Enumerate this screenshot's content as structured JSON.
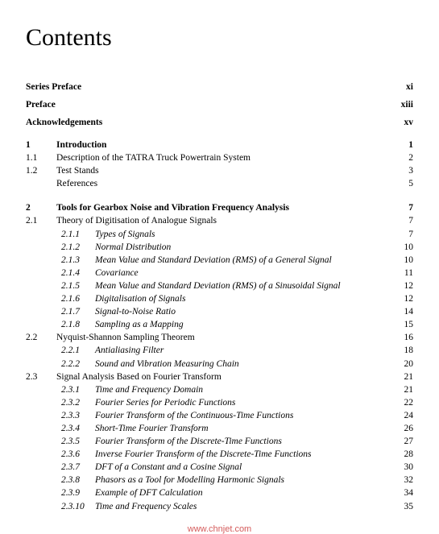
{
  "title": "Contents",
  "front": [
    {
      "label": "Series Preface",
      "page": "xi"
    },
    {
      "label": "Preface",
      "page": "xiii"
    },
    {
      "label": "Acknowledgements",
      "page": "xv"
    }
  ],
  "chapters": [
    {
      "num": "1",
      "title": "Introduction",
      "page": "1",
      "sections": [
        {
          "num": "1.1",
          "title": "Description of the TATRA Truck Powertrain System",
          "page": "2",
          "subs": []
        },
        {
          "num": "1.2",
          "title": "Test Stands",
          "page": "3",
          "subs": []
        },
        {
          "num": "",
          "title": "References",
          "page": "5",
          "subs": []
        }
      ]
    },
    {
      "num": "2",
      "title": "Tools for Gearbox Noise and Vibration Frequency Analysis",
      "page": "7",
      "sections": [
        {
          "num": "2.1",
          "title": "Theory of Digitisation of Analogue Signals",
          "page": "7",
          "subs": [
            {
              "num": "2.1.1",
              "title": "Types of Signals",
              "page": "7"
            },
            {
              "num": "2.1.2",
              "title": "Normal Distribution",
              "page": "10"
            },
            {
              "num": "2.1.3",
              "title": "Mean Value and Standard Deviation (RMS) of a General Signal",
              "page": "10"
            },
            {
              "num": "2.1.4",
              "title": "Covariance",
              "page": "11"
            },
            {
              "num": "2.1.5",
              "title": "Mean Value and Standard Deviation (RMS) of a Sinusoidal Signal",
              "page": "12"
            },
            {
              "num": "2.1.6",
              "title": "Digitalisation of Signals",
              "page": "12"
            },
            {
              "num": "2.1.7",
              "title": "Signal-to-Noise Ratio",
              "page": "14"
            },
            {
              "num": "2.1.8",
              "title": "Sampling as a Mapping",
              "page": "15"
            }
          ]
        },
        {
          "num": "2.2",
          "title": "Nyquist-Shannon Sampling Theorem",
          "page": "16",
          "subs": [
            {
              "num": "2.2.1",
              "title": "Antialiasing Filter",
              "page": "18"
            },
            {
              "num": "2.2.2",
              "title": "Sound and Vibration Measuring Chain",
              "page": "20"
            }
          ]
        },
        {
          "num": "2.3",
          "title": "Signal Analysis Based on Fourier Transform",
          "page": "21",
          "subs": [
            {
              "num": "2.3.1",
              "title": "Time and Frequency Domain",
              "page": "21"
            },
            {
              "num": "2.3.2",
              "title": "Fourier Series for Periodic Functions",
              "page": "22"
            },
            {
              "num": "2.3.3",
              "title": "Fourier Transform of the Continuous-Time Functions",
              "page": "24"
            },
            {
              "num": "2.3.4",
              "title": "Short-Time Fourier Transform",
              "page": "26"
            },
            {
              "num": "2.3.5",
              "title": "Fourier Transform of the Discrete-Time Functions",
              "page": "27"
            },
            {
              "num": "2.3.6",
              "title": "Inverse Fourier Transform of the Discrete-Time Functions",
              "page": "28"
            },
            {
              "num": "2.3.7",
              "title": "DFT of a Constant and a Cosine Signal",
              "page": "30"
            },
            {
              "num": "2.3.8",
              "title": "Phasors as a Tool for Modelling Harmonic Signals",
              "page": "32"
            },
            {
              "num": "2.3.9",
              "title": "Example of DFT Calculation",
              "page": "34"
            },
            {
              "num": "2.3.10",
              "title": "Time and Frequency Scales",
              "page": "35"
            }
          ]
        }
      ]
    }
  ],
  "watermark": "www.chnjet.com"
}
